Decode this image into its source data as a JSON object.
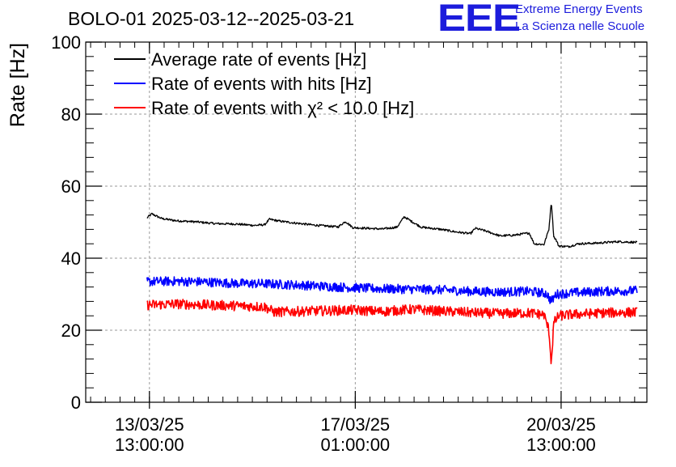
{
  "header": {
    "title": "BOLO-01 2025-03-12--2025-03-21",
    "logo_letters": "EEE",
    "logo_line1": "Extreme Energy Events",
    "logo_line2": "La Scienza nelle Scuole",
    "logo_color": "#1c1cdc"
  },
  "chart_data": {
    "type": "line",
    "title": "BOLO-01 2025-03-12--2025-03-21",
    "xlabel": "",
    "ylabel": "Rate [Hz]",
    "ylim": [
      0,
      100
    ],
    "yticks": [
      0,
      20,
      40,
      60,
      80,
      100
    ],
    "x_unit": "datetime",
    "xlim": [
      "2025-03-12T11:00:00",
      "2025-03-22T00:00:00"
    ],
    "xticks": [
      {
        "x": "2025-03-13T13:00:00",
        "line1": "13/03/25",
        "line2": "13:00:00"
      },
      {
        "x": "2025-03-17T01:00:00",
        "line1": "17/03/25",
        "line2": "01:00:00"
      },
      {
        "x": "2025-03-20T13:00:00",
        "line1": "20/03/25",
        "line2": "13:00:00"
      }
    ],
    "grid": true,
    "legend_position": "top-left",
    "series": [
      {
        "name": "Average rate of events [Hz]",
        "color": "#000000",
        "noise": 0.3,
        "points": [
          [
            "2025-03-13T12:00:00",
            51.2
          ],
          [
            "2025-03-13T14:00:00",
            52.3
          ],
          [
            "2025-03-13T18:00:00",
            51.0
          ],
          [
            "2025-03-14T00:00:00",
            50.4
          ],
          [
            "2025-03-14T08:00:00",
            50.1
          ],
          [
            "2025-03-14T16:00:00",
            49.6
          ],
          [
            "2025-03-15T00:00:00",
            49.5
          ],
          [
            "2025-03-15T08:00:00",
            49.1
          ],
          [
            "2025-03-15T12:00:00",
            49.3
          ],
          [
            "2025-03-15T14:00:00",
            50.8
          ],
          [
            "2025-03-15T18:00:00",
            50.3
          ],
          [
            "2025-03-16T00:00:00",
            49.8
          ],
          [
            "2025-03-16T08:00:00",
            49.2
          ],
          [
            "2025-03-16T18:00:00",
            48.7
          ],
          [
            "2025-03-16T21:00:00",
            50.2
          ],
          [
            "2025-03-17T00:00:00",
            48.5
          ],
          [
            "2025-03-17T12:00:00",
            48.1
          ],
          [
            "2025-03-17T18:00:00",
            48.6
          ],
          [
            "2025-03-17T21:00:00",
            51.5
          ],
          [
            "2025-03-18T00:00:00",
            50.2
          ],
          [
            "2025-03-18T04:00:00",
            48.6
          ],
          [
            "2025-03-18T12:00:00",
            48.0
          ],
          [
            "2025-03-18T18:00:00",
            47.3
          ],
          [
            "2025-03-19T00:00:00",
            46.8
          ],
          [
            "2025-03-19T02:00:00",
            48.3
          ],
          [
            "2025-03-19T06:00:00",
            47.6
          ],
          [
            "2025-03-19T12:00:00",
            46.2
          ],
          [
            "2025-03-19T18:00:00",
            46.4
          ],
          [
            "2025-03-20T00:00:00",
            47.0
          ],
          [
            "2025-03-20T02:00:00",
            44.0
          ],
          [
            "2025-03-20T06:00:00",
            43.8
          ],
          [
            "2025-03-20T08:00:00",
            48.0
          ],
          [
            "2025-03-20T09:00:00",
            55.8
          ],
          [
            "2025-03-20T10:00:00",
            46.0
          ],
          [
            "2025-03-20T11:00:00",
            45.0
          ],
          [
            "2025-03-20T12:00:00",
            43.4
          ],
          [
            "2025-03-20T16:00:00",
            43.2
          ],
          [
            "2025-03-20T20:00:00",
            44.0
          ],
          [
            "2025-03-21T04:00:00",
            44.2
          ],
          [
            "2025-03-21T12:00:00",
            44.6
          ],
          [
            "2025-03-21T20:00:00",
            44.4
          ]
        ]
      },
      {
        "name": "Rate of events with hits [Hz]",
        "color": "#0000ff",
        "noise": 1.3,
        "points": [
          [
            "2025-03-13T12:00:00",
            33.5
          ],
          [
            "2025-03-14T00:00:00",
            33.6
          ],
          [
            "2025-03-14T12:00:00",
            33.4
          ],
          [
            "2025-03-15T00:00:00",
            33.0
          ],
          [
            "2025-03-15T12:00:00",
            32.9
          ],
          [
            "2025-03-16T00:00:00",
            32.6
          ],
          [
            "2025-03-16T12:00:00",
            32.2
          ],
          [
            "2025-03-17T00:00:00",
            31.8
          ],
          [
            "2025-03-17T12:00:00",
            31.5
          ],
          [
            "2025-03-18T00:00:00",
            31.4
          ],
          [
            "2025-03-18T12:00:00",
            31.2
          ],
          [
            "2025-03-19T00:00:00",
            30.8
          ],
          [
            "2025-03-19T12:00:00",
            30.6
          ],
          [
            "2025-03-20T00:00:00",
            30.8
          ],
          [
            "2025-03-20T07:00:00",
            30.2
          ],
          [
            "2025-03-20T09:00:00",
            28.0
          ],
          [
            "2025-03-20T11:00:00",
            30.0
          ],
          [
            "2025-03-20T18:00:00",
            30.4
          ],
          [
            "2025-03-21T06:00:00",
            30.8
          ],
          [
            "2025-03-21T20:00:00",
            31.0
          ]
        ]
      },
      {
        "name": "Rate of events with χ² < 10.0 [Hz]",
        "color": "#ff0000",
        "noise": 1.4,
        "points": [
          [
            "2025-03-13T12:00:00",
            27.0
          ],
          [
            "2025-03-14T00:00:00",
            27.3
          ],
          [
            "2025-03-14T12:00:00",
            27.0
          ],
          [
            "2025-03-15T00:00:00",
            26.8
          ],
          [
            "2025-03-15T12:00:00",
            26.5
          ],
          [
            "2025-03-15T16:00:00",
            25.0
          ],
          [
            "2025-03-16T00:00:00",
            25.2
          ],
          [
            "2025-03-16T12:00:00",
            25.4
          ],
          [
            "2025-03-17T00:00:00",
            25.6
          ],
          [
            "2025-03-17T12:00:00",
            25.2
          ],
          [
            "2025-03-18T00:00:00",
            25.8
          ],
          [
            "2025-03-18T12:00:00",
            25.3
          ],
          [
            "2025-03-19T00:00:00",
            24.9
          ],
          [
            "2025-03-19T12:00:00",
            24.6
          ],
          [
            "2025-03-20T00:00:00",
            24.8
          ],
          [
            "2025-03-20T06:00:00",
            24.3
          ],
          [
            "2025-03-20T08:00:00",
            20.0
          ],
          [
            "2025-03-20T09:00:00",
            10.8
          ],
          [
            "2025-03-20T10:00:00",
            22.0
          ],
          [
            "2025-03-20T12:00:00",
            24.0
          ],
          [
            "2025-03-20T18:00:00",
            24.4
          ],
          [
            "2025-03-21T06:00:00",
            24.8
          ],
          [
            "2025-03-21T20:00:00",
            25.0
          ]
        ]
      }
    ]
  }
}
